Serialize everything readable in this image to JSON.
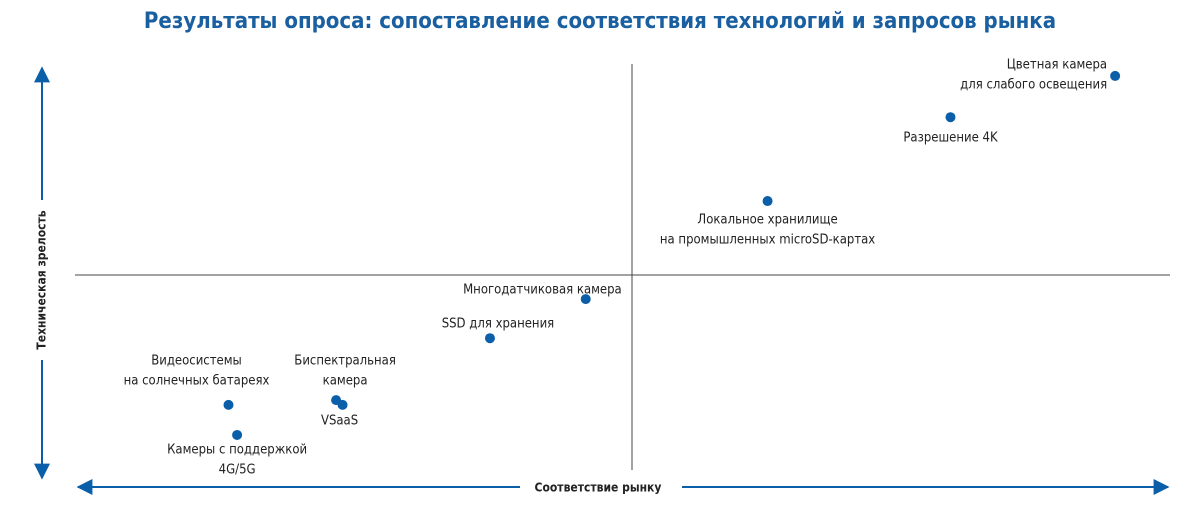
{
  "chart_data": {
    "type": "scatter",
    "title": "Результаты опроса: сопоставление соответствия технологий и запросов рынка",
    "x_label": "Соответствие рынку",
    "y_label": "Техническая зрелость",
    "color": "#0b5ea8",
    "xlim": [
      0,
      100
    ],
    "ylim": [
      0,
      100
    ],
    "points": [
      {
        "label": [
          "Цветная камера",
          "для слабого освещения"
        ],
        "x": 94.9,
        "y": 96.3
      },
      {
        "label": [
          "Разрешение 4K"
        ],
        "x": 79.6,
        "y": 86.7
      },
      {
        "label": [
          "Локальное хранилище",
          "на промышленных microSD-картах"
        ],
        "x": 62.6,
        "y": 67.2
      },
      {
        "label": [
          "Многодатчиковая камера"
        ],
        "x": 45.7,
        "y": 44.4
      },
      {
        "label": [
          "SSD для хранения"
        ],
        "x": 36.8,
        "y": 35.3
      },
      {
        "label": [
          "Видеосистемы",
          "на солнечных батареях"
        ],
        "x": 12.5,
        "y": 19.8
      },
      {
        "label": [
          "Биспектральная",
          "камера"
        ],
        "x": 22.5,
        "y": 20.9
      },
      {
        "label": [
          "VSaaS"
        ],
        "x": 23.1,
        "y": 19.8
      },
      {
        "label": [
          "Камеры с поддержкой",
          "4G/5G"
        ],
        "x": 13.3,
        "y": 12.8
      }
    ]
  }
}
